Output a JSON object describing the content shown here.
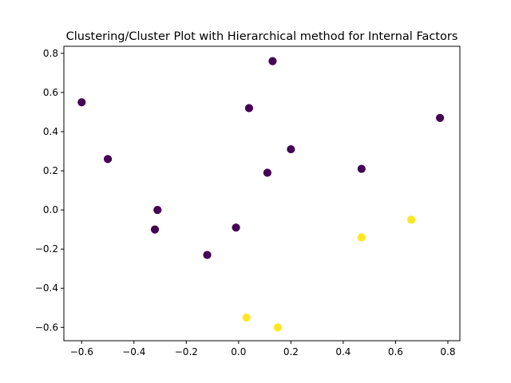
{
  "chart_data": {
    "type": "scatter",
    "title": "Clustering/Cluster Plot with Hierarchical method for Internal Factors",
    "xlabel": "",
    "ylabel": "",
    "xlim": [
      -0.668,
      0.846
    ],
    "ylim": [
      -0.668,
      0.836
    ],
    "xticks": [
      -0.6,
      -0.4,
      -0.2,
      0.0,
      0.2,
      0.4,
      0.6,
      0.8
    ],
    "xtick_labels": [
      "−0.6",
      "−0.4",
      "−0.2",
      "0.0",
      "0.2",
      "0.4",
      "0.6",
      "0.8"
    ],
    "yticks": [
      -0.6,
      -0.4,
      -0.2,
      0.0,
      0.2,
      0.4,
      0.6,
      0.8
    ],
    "ytick_labels": [
      "−0.6",
      "−0.4",
      "−0.2",
      "0.0",
      "0.2",
      "0.4",
      "0.6",
      "0.8"
    ],
    "grid": false,
    "colors": {
      "cluster_0": "#440154",
      "cluster_1": "#fde725"
    },
    "series": [
      {
        "cluster": 0,
        "points": [
          {
            "x": -0.6,
            "y": 0.55
          },
          {
            "x": -0.5,
            "y": 0.26
          },
          {
            "x": -0.31,
            "y": 0.0
          },
          {
            "x": -0.32,
            "y": -0.1
          },
          {
            "x": -0.12,
            "y": -0.23
          },
          {
            "x": -0.01,
            "y": -0.09
          },
          {
            "x": 0.04,
            "y": 0.52
          },
          {
            "x": 0.13,
            "y": 0.76
          },
          {
            "x": 0.11,
            "y": 0.19
          },
          {
            "x": 0.2,
            "y": 0.31
          },
          {
            "x": 0.47,
            "y": 0.21
          },
          {
            "x": 0.77,
            "y": 0.47
          }
        ]
      },
      {
        "cluster": 1,
        "points": [
          {
            "x": 0.47,
            "y": -0.14
          },
          {
            "x": 0.66,
            "y": -0.05
          },
          {
            "x": 0.03,
            "y": -0.55
          },
          {
            "x": 0.15,
            "y": -0.6
          }
        ]
      }
    ]
  }
}
